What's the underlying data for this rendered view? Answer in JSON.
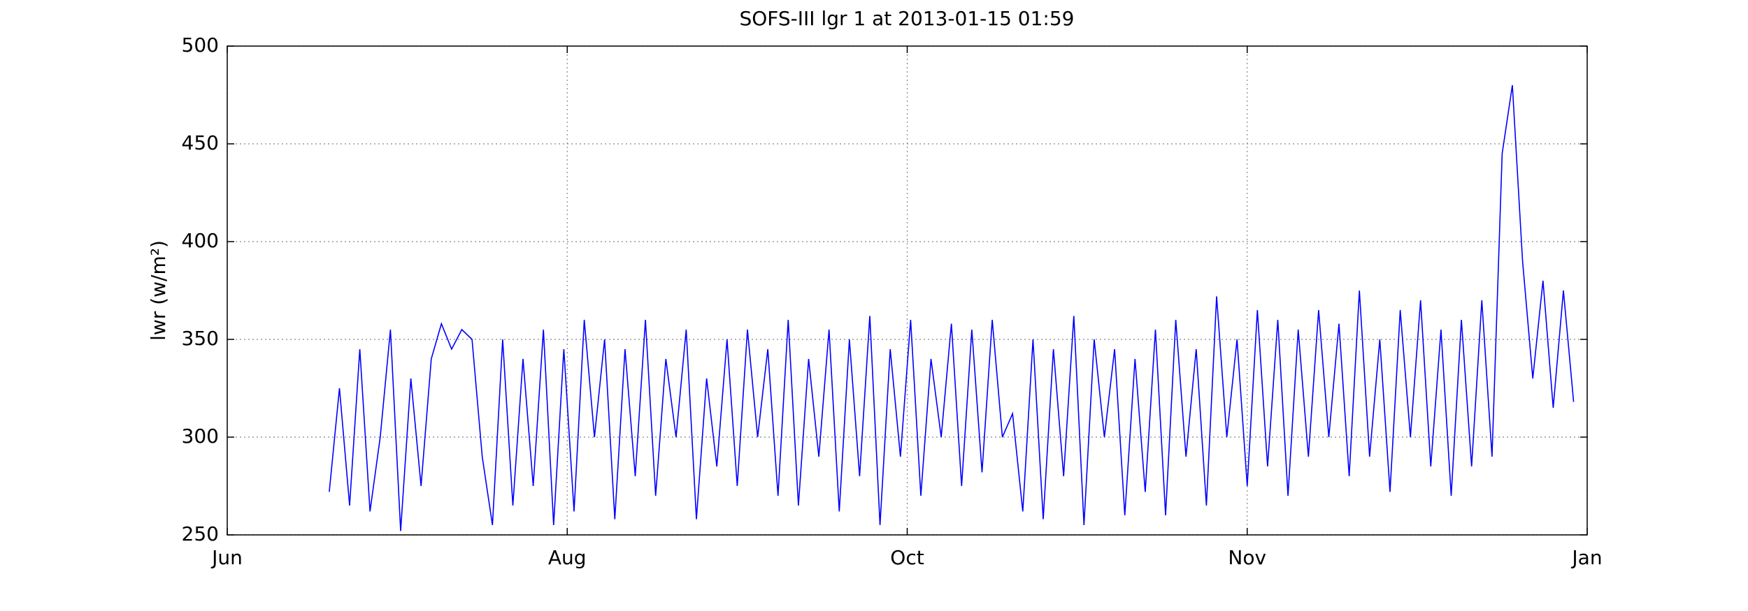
{
  "chart_data": {
    "type": "line",
    "title": "SOFS-III lgr 1 at 2013-01-15 01:59",
    "y_label": "lwr (w/m²)",
    "color": "#0000ff",
    "grid": true,
    "xlim": [
      0,
      4
    ],
    "xticks": [
      {
        "value": 0,
        "label": "Jun"
      },
      {
        "value": 1,
        "label": "Aug"
      },
      {
        "value": 2,
        "label": "Oct"
      },
      {
        "value": 3,
        "label": "Nov"
      },
      {
        "value": 4,
        "label": "Jan"
      }
    ],
    "ylim": [
      250,
      500
    ],
    "yticks": [
      250,
      300,
      350,
      400,
      450,
      500
    ],
    "x": [
      0.3,
      0.33,
      0.36,
      0.39,
      0.42,
      0.45,
      0.48,
      0.51,
      0.54,
      0.57,
      0.6,
      0.63,
      0.66,
      0.69,
      0.72,
      0.75,
      0.78,
      0.81,
      0.84,
      0.87,
      0.9,
      0.93,
      0.96,
      0.99,
      1.02,
      1.05,
      1.08,
      1.11,
      1.14,
      1.17,
      1.2,
      1.23,
      1.26,
      1.29,
      1.32,
      1.35,
      1.38,
      1.41,
      1.44,
      1.47,
      1.5,
      1.53,
      1.56,
      1.59,
      1.62,
      1.65,
      1.68,
      1.71,
      1.74,
      1.77,
      1.8,
      1.83,
      1.86,
      1.89,
      1.92,
      1.95,
      1.98,
      2.01,
      2.04,
      2.07,
      2.1,
      2.13,
      2.16,
      2.19,
      2.22,
      2.25,
      2.28,
      2.31,
      2.34,
      2.37,
      2.4,
      2.43,
      2.46,
      2.49,
      2.52,
      2.55,
      2.58,
      2.61,
      2.64,
      2.67,
      2.7,
      2.73,
      2.76,
      2.79,
      2.82,
      2.85,
      2.88,
      2.91,
      2.94,
      2.97,
      3.0,
      3.03,
      3.06,
      3.09,
      3.12,
      3.15,
      3.18,
      3.21,
      3.24,
      3.27,
      3.3,
      3.33,
      3.36,
      3.39,
      3.42,
      3.45,
      3.48,
      3.51,
      3.54,
      3.57,
      3.6,
      3.63,
      3.66,
      3.69,
      3.72,
      3.75,
      3.78,
      3.81,
      3.84,
      3.87,
      3.9,
      3.93,
      3.96
    ],
    "values": [
      272,
      325,
      265,
      345,
      262,
      300,
      355,
      252,
      330,
      275,
      340,
      358,
      345,
      355,
      350,
      290,
      255,
      350,
      265,
      340,
      275,
      355,
      255,
      345,
      262,
      360,
      300,
      350,
      258,
      345,
      280,
      360,
      270,
      340,
      300,
      355,
      258,
      330,
      285,
      350,
      275,
      355,
      300,
      345,
      270,
      360,
      265,
      340,
      290,
      355,
      262,
      350,
      280,
      362,
      255,
      345,
      290,
      360,
      270,
      340,
      300,
      358,
      275,
      355,
      282,
      360,
      300,
      312,
      262,
      350,
      258,
      345,
      280,
      362,
      255,
      350,
      300,
      345,
      260,
      340,
      272,
      355,
      260,
      360,
      290,
      345,
      265,
      372,
      300,
      350,
      275,
      365,
      285,
      360,
      270,
      355,
      290,
      365,
      300,
      358,
      280,
      375,
      290,
      350,
      272,
      365,
      300,
      370,
      285,
      355,
      270,
      360,
      285,
      370,
      290,
      445,
      480,
      390,
      330,
      380,
      315,
      375,
      318
    ]
  }
}
